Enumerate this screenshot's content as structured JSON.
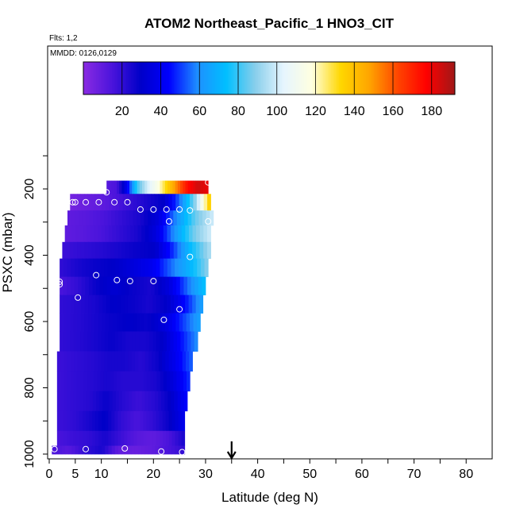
{
  "chart_data": {
    "type": "heatmap",
    "title": "ATOM2 Northeast_Pacific_1 HNO3_CIT",
    "flights_label": "Flts: 1,2",
    "dates_label": "MMDD: 0126,0129",
    "xlabel": "Latitude (deg N)",
    "ylabel": "PSXC (mbar)",
    "xlim": [
      0,
      85
    ],
    "ylim": [
      1000,
      0
    ],
    "xticks": [
      0,
      5,
      10,
      20,
      30,
      40,
      50,
      60,
      70,
      80
    ],
    "yticks": [
      200,
      400,
      600,
      800,
      1000
    ],
    "colorbar": {
      "range": [
        0,
        192
      ],
      "ticks": [
        20,
        40,
        60,
        80,
        100,
        120,
        140,
        160,
        180
      ],
      "colors": [
        "#8a2be2",
        "#4b14dc",
        "#0000c8",
        "#0000ff",
        "#1e90ff",
        "#00bfff",
        "#87ceeb",
        "#e6f5ff",
        "#ffffe0",
        "#ffd700",
        "#ffa500",
        "#ff4500",
        "#ff0000",
        "#a01818"
      ]
    },
    "arrow_latitude": 35,
    "layers": [
      {
        "p_top": 175,
        "p_bot": 215,
        "x_start": 11,
        "x_end": 30.5,
        "values": [
          12,
          15,
          40,
          80,
          100,
          115,
          135,
          155,
          175,
          185,
          180
        ]
      },
      {
        "p_top": 215,
        "p_bot": 265,
        "x_start": 4,
        "x_end": 31,
        "values": [
          5,
          8,
          10,
          15,
          20,
          25,
          30,
          55,
          90,
          140
        ]
      },
      {
        "p_top": 265,
        "p_bot": 310,
        "x_start": 3.5,
        "x_end": 31.5,
        "values": [
          10,
          12,
          15,
          20,
          25,
          35,
          60,
          85,
          100
        ]
      },
      {
        "p_top": 310,
        "p_bot": 360,
        "x_start": 3,
        "x_end": 31,
        "values": [
          10,
          12,
          15,
          20,
          25,
          35,
          60,
          85,
          100
        ]
      },
      {
        "p_top": 360,
        "p_bot": 410,
        "x_start": 2.5,
        "x_end": 31,
        "values": [
          18,
          20,
          22,
          25,
          28,
          30,
          50,
          75,
          95
        ]
      },
      {
        "p_top": 410,
        "p_bot": 465,
        "x_start": 2,
        "x_end": 30.5,
        "values": [
          20,
          25,
          28,
          30,
          35,
          40,
          55,
          70,
          90
        ]
      },
      {
        "p_top": 465,
        "p_bot": 520,
        "x_start": 2,
        "x_end": 30,
        "values": [
          15,
          20,
          28,
          32,
          28,
          25,
          35,
          55,
          75
        ]
      },
      {
        "p_top": 520,
        "p_bot": 575,
        "x_start": 2,
        "x_end": 29.5,
        "values": [
          20,
          22,
          25,
          30,
          28,
          25,
          30,
          45,
          65
        ]
      },
      {
        "p_top": 575,
        "p_bot": 630,
        "x_start": 2,
        "x_end": 29,
        "values": [
          20,
          22,
          25,
          28,
          30,
          28,
          35,
          50,
          65
        ]
      },
      {
        "p_top": 630,
        "p_bot": 690,
        "x_start": 2,
        "x_end": 28.5,
        "values": [
          20,
          22,
          25,
          28,
          25,
          25,
          30,
          45,
          60
        ]
      },
      {
        "p_top": 690,
        "p_bot": 750,
        "x_start": 1.5,
        "x_end": 27.5,
        "values": [
          18,
          20,
          22,
          25,
          25,
          22,
          28,
          40,
          55
        ]
      },
      {
        "p_top": 750,
        "p_bot": 810,
        "x_start": 1.5,
        "x_end": 27,
        "values": [
          18,
          20,
          22,
          25,
          22,
          22,
          25,
          35,
          50
        ]
      },
      {
        "p_top": 810,
        "p_bot": 870,
        "x_start": 1.5,
        "x_end": 26.5,
        "values": [
          18,
          20,
          22,
          28,
          22,
          18,
          22,
          30,
          45
        ]
      },
      {
        "p_top": 870,
        "p_bot": 930,
        "x_start": 1.5,
        "x_end": 26,
        "values": [
          18,
          20,
          25,
          30,
          20,
          15,
          20,
          28,
          40
        ]
      },
      {
        "p_top": 930,
        "p_bot": 975,
        "x_start": 1.5,
        "x_end": 26,
        "values": [
          15,
          18,
          20,
          25,
          18,
          12,
          10,
          15,
          25
        ]
      },
      {
        "p_top": 975,
        "p_bot": 1000,
        "x_start": 0.5,
        "x_end": 26,
        "values": [
          15,
          12,
          20,
          25,
          10,
          8,
          10,
          15,
          20
        ]
      }
    ],
    "points": [
      {
        "x": 11,
        "y": 210
      },
      {
        "x": 5,
        "y": 240
      },
      {
        "x": 4.5,
        "y": 240
      },
      {
        "x": 7,
        "y": 240
      },
      {
        "x": 9.5,
        "y": 240
      },
      {
        "x": 12.5,
        "y": 240
      },
      {
        "x": 15,
        "y": 240
      },
      {
        "x": 17.5,
        "y": 262
      },
      {
        "x": 20,
        "y": 262
      },
      {
        "x": 22.5,
        "y": 262
      },
      {
        "x": 25,
        "y": 262
      },
      {
        "x": 27,
        "y": 265
      },
      {
        "x": 30.5,
        "y": 180
      },
      {
        "x": 23,
        "y": 298
      },
      {
        "x": 30.5,
        "y": 298
      },
      {
        "x": 27,
        "y": 405
      },
      {
        "x": 9,
        "y": 460
      },
      {
        "x": 13,
        "y": 475
      },
      {
        "x": 15.5,
        "y": 478
      },
      {
        "x": 20,
        "y": 478
      },
      {
        "x": 2,
        "y": 480
      },
      {
        "x": 2,
        "y": 488
      },
      {
        "x": 5.5,
        "y": 528
      },
      {
        "x": 25,
        "y": 563
      },
      {
        "x": 22,
        "y": 595
      },
      {
        "x": 1,
        "y": 985
      },
      {
        "x": 7,
        "y": 985
      },
      {
        "x": 14.5,
        "y": 983
      },
      {
        "x": 21.5,
        "y": 992
      },
      {
        "x": 25.5,
        "y": 994
      }
    ]
  }
}
